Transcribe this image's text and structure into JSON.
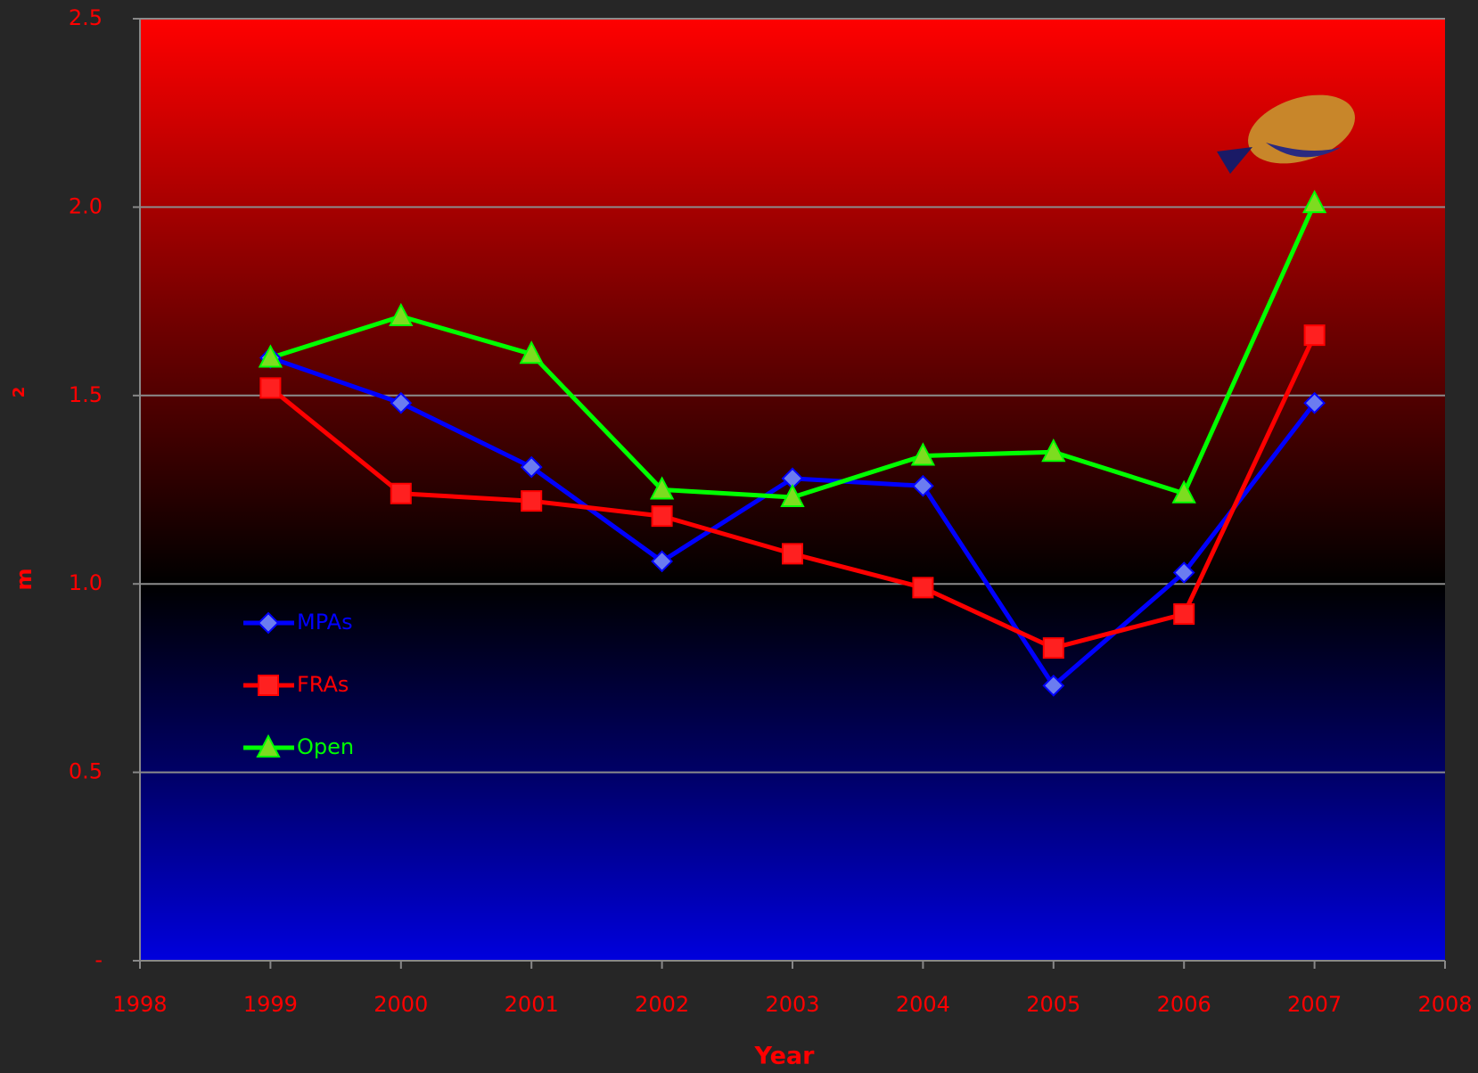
{
  "chart_data": {
    "type": "line",
    "x_label": "Year",
    "y_label": "m",
    "y_label_superscript": "2",
    "x": [
      1999,
      2000,
      2001,
      2002,
      2003,
      2004,
      2005,
      2006,
      2007
    ],
    "series": [
      {
        "name": "MPAs",
        "color": "#0000ff",
        "marker": "diamond",
        "values": [
          1.6,
          1.48,
          1.31,
          1.06,
          1.28,
          1.26,
          0.73,
          1.03,
          1.48
        ]
      },
      {
        "name": "FRAs",
        "color": "#ff0000",
        "marker": "square",
        "values": [
          1.52,
          1.24,
          1.22,
          1.18,
          1.08,
          0.99,
          0.83,
          0.92,
          1.66
        ]
      },
      {
        "name": "Open",
        "color": "#00ff00",
        "marker": "triangle",
        "values": [
          1.6,
          1.71,
          1.61,
          1.25,
          1.23,
          1.34,
          1.35,
          1.24,
          2.01
        ]
      }
    ],
    "xlim": [
      1998,
      2008
    ],
    "xticks": [
      1998,
      1999,
      2000,
      2001,
      2002,
      2003,
      2004,
      2005,
      2006,
      2007,
      2008
    ],
    "ylim": [
      0,
      2.5
    ],
    "yticks": [
      {
        "value": 0,
        "label": "-"
      },
      0.5,
      {
        "value": 1,
        "label": "1.0"
      },
      1.5,
      {
        "value": 2,
        "label": "2.0"
      },
      2.5
    ],
    "grid": true,
    "legend": "left"
  }
}
